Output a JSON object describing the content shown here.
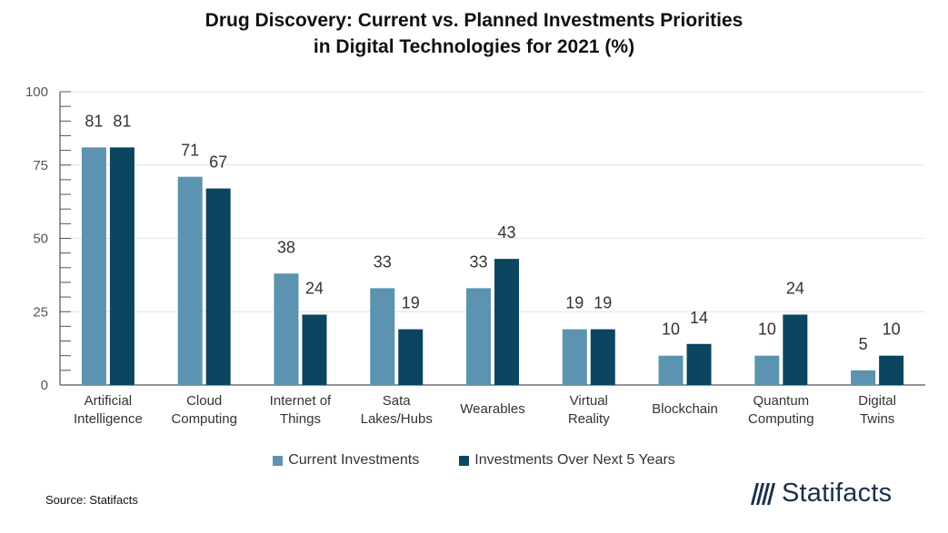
{
  "title_line1": "Drug Discovery: Current vs. Planned Investments Priorities",
  "title_line2": "in Digital Technologies for 2021 (%)",
  "source": "Source: Statifacts",
  "brand": "Statifacts",
  "colors": {
    "current": "#5b93b0",
    "planned": "#0b4560",
    "grid": "#e3e3e3",
    "axis": "#555555"
  },
  "chart_data": {
    "type": "bar",
    "title": "Drug Discovery: Current vs. Planned Investments Priorities in Digital Technologies for 2021 (%)",
    "xlabel": "",
    "ylabel": "",
    "ylim": [
      0,
      100
    ],
    "yticks": [
      "0",
      "25",
      "50",
      "75",
      "100"
    ],
    "categories": [
      [
        "Artificial",
        "Intelligence"
      ],
      [
        "Cloud",
        "Computing"
      ],
      [
        "Internet of",
        "Things"
      ],
      [
        "Sata",
        "Lakes/Hubs"
      ],
      [
        "Wearables"
      ],
      [
        "Virtual",
        "Reality"
      ],
      [
        "Blockchain"
      ],
      [
        "Quantum",
        "Computing"
      ],
      [
        "Digital",
        "Twins"
      ]
    ],
    "series": [
      {
        "name": "Current Investments",
        "values": [
          81,
          71,
          38,
          33,
          33,
          19,
          10,
          10,
          5
        ]
      },
      {
        "name": "Investments Over Next 5 Years",
        "values": [
          81,
          67,
          24,
          19,
          43,
          19,
          14,
          24,
          10
        ]
      }
    ],
    "legend_position": "bottom"
  }
}
